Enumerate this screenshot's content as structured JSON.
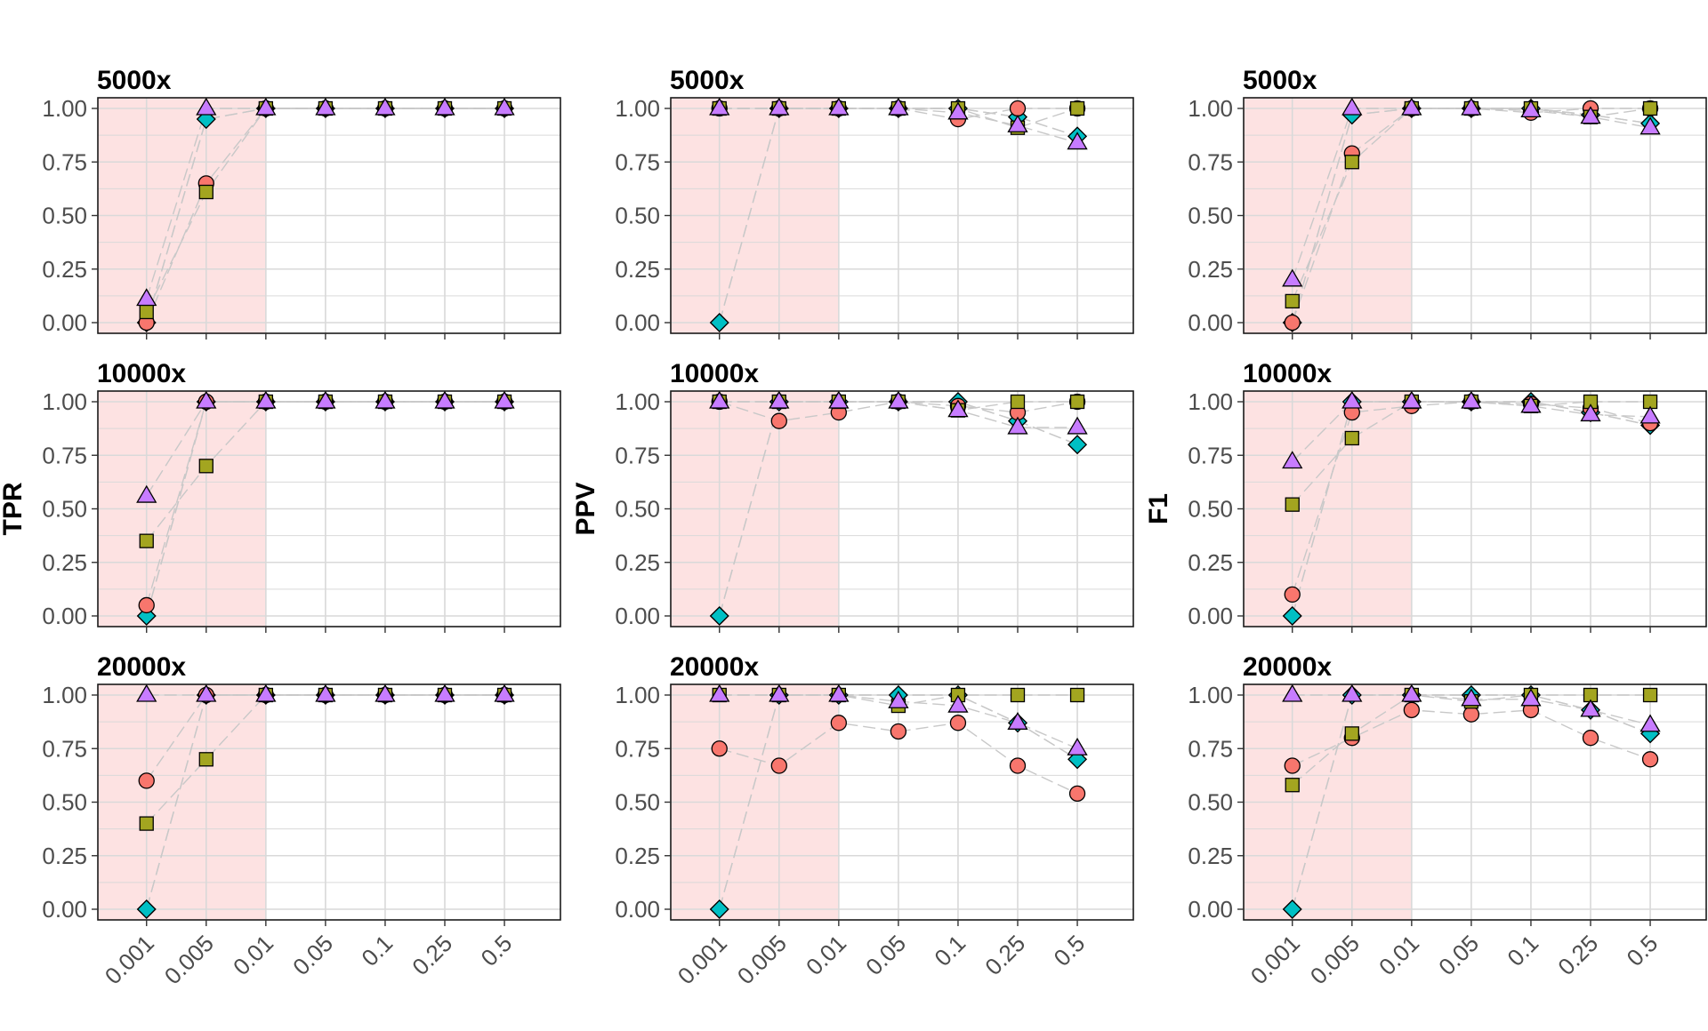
{
  "colors": {
    "highlight": "#fde2e2",
    "grid": "#d9d9d9",
    "connector": "#c8c8c8",
    "series": [
      "#f8766d",
      "#a3a520",
      "#c77cff",
      "#00bfc4",
      "#3fb58f"
    ]
  },
  "chart_data": [
    {
      "type": "scatter",
      "ylabel": "TPR",
      "x": [
        "0.001",
        "0.005",
        "0.01",
        "0.05",
        "0.1",
        "0.25",
        "0.5"
      ],
      "ylim": [
        0,
        1
      ],
      "yticks": [
        "0.00",
        "0.25",
        "0.50",
        "0.75",
        "1.00"
      ],
      "shaded_region": [
        "0.001",
        "0.01"
      ],
      "panels": [
        {
          "title": "5000x",
          "series": [
            {
              "shape": "circle",
              "values": [
                0.0,
                0.65,
                1,
                1,
                1,
                1,
                1
              ]
            },
            {
              "shape": "square",
              "values": [
                0.05,
                0.61,
                1,
                1,
                1,
                1,
                1
              ]
            },
            {
              "shape": "triangle",
              "values": [
                0.11,
                1.0,
                1,
                1,
                1,
                1,
                1
              ]
            },
            {
              "shape": "diamond",
              "values": [
                0.0,
                0.95,
                1,
                1,
                1,
                1,
                1
              ]
            },
            {
              "shape": "diamond2",
              "values": [
                0.0,
                0.95,
                1,
                1,
                1,
                1,
                1
              ]
            }
          ]
        },
        {
          "title": "10000x",
          "series": [
            {
              "shape": "circle",
              "values": [
                0.05,
                1.0,
                1,
                1,
                1,
                1,
                1
              ]
            },
            {
              "shape": "square",
              "values": [
                0.35,
                0.7,
                1,
                1,
                1,
                1,
                1
              ]
            },
            {
              "shape": "triangle",
              "values": [
                0.56,
                1.0,
                1,
                1,
                1,
                1,
                1
              ]
            },
            {
              "shape": "diamond",
              "values": [
                0.0,
                1.0,
                1,
                1,
                1,
                1,
                1
              ]
            },
            {
              "shape": "diamond2",
              "values": [
                0.0,
                1.0,
                1,
                1,
                1,
                1,
                1
              ]
            }
          ]
        },
        {
          "title": "20000x",
          "series": [
            {
              "shape": "circle",
              "values": [
                0.6,
                1.0,
                1,
                1,
                1,
                1,
                1
              ]
            },
            {
              "shape": "square",
              "values": [
                0.4,
                0.7,
                1,
                1,
                1,
                1,
                1
              ]
            },
            {
              "shape": "triangle",
              "values": [
                1.0,
                1.0,
                1,
                1,
                1,
                1,
                1
              ]
            },
            {
              "shape": "diamond",
              "values": [
                0.0,
                1.0,
                1,
                1,
                1,
                1,
                1
              ]
            },
            {
              "shape": "diamond2",
              "values": [
                0.0,
                1.0,
                1,
                1,
                1,
                1,
                1
              ]
            }
          ]
        }
      ]
    },
    {
      "type": "scatter",
      "ylabel": "PPV",
      "x": [
        "0.001",
        "0.005",
        "0.01",
        "0.05",
        "0.1",
        "0.25",
        "0.5"
      ],
      "ylim": [
        0,
        1
      ],
      "yticks": [
        "0.00",
        "0.25",
        "0.50",
        "0.75",
        "1.00"
      ],
      "shaded_region": [
        "0.001",
        "0.01"
      ],
      "panels": [
        {
          "title": "5000x",
          "series": [
            {
              "shape": "circle",
              "values": [
                1.0,
                1.0,
                1,
                1,
                0.95,
                1.0,
                1.0
              ]
            },
            {
              "shape": "square",
              "values": [
                1.0,
                1.0,
                1,
                1,
                1.0,
                0.91,
                1.0
              ]
            },
            {
              "shape": "triangle",
              "values": [
                1.0,
                1.0,
                1,
                1,
                0.98,
                0.92,
                0.84
              ]
            },
            {
              "shape": "diamond",
              "values": [
                0.0,
                1.0,
                1,
                1,
                1.0,
                0.96,
                0.87
              ]
            },
            {
              "shape": "diamond2",
              "values": [
                0.0,
                1.0,
                1,
                1,
                1.0,
                0.96,
                0.87
              ]
            }
          ]
        },
        {
          "title": "10000x",
          "series": [
            {
              "shape": "circle",
              "values": [
                1.0,
                0.91,
                0.95,
                1,
                0.98,
                0.95,
                1.0
              ]
            },
            {
              "shape": "square",
              "values": [
                1.0,
                1.0,
                1.0,
                1,
                0.96,
                1.0,
                1.0
              ]
            },
            {
              "shape": "triangle",
              "values": [
                1.0,
                1.0,
                1.0,
                1,
                0.96,
                0.88,
                0.88
              ]
            },
            {
              "shape": "diamond",
              "values": [
                0.0,
                1.0,
                1.0,
                1,
                1.0,
                0.91,
                0.8
              ]
            },
            {
              "shape": "diamond2",
              "values": [
                0.0,
                1.0,
                1.0,
                1,
                1.0,
                0.91,
                0.8
              ]
            }
          ]
        },
        {
          "title": "20000x",
          "series": [
            {
              "shape": "circle",
              "values": [
                0.75,
                0.67,
                0.87,
                0.83,
                0.87,
                0.67,
                0.54
              ]
            },
            {
              "shape": "square",
              "values": [
                1.0,
                1.0,
                1.0,
                0.95,
                1.0,
                1.0,
                1.0
              ]
            },
            {
              "shape": "triangle",
              "values": [
                1.0,
                1.0,
                1.0,
                0.97,
                0.95,
                0.87,
                0.75
              ]
            },
            {
              "shape": "diamond",
              "values": [
                0.0,
                1.0,
                1.0,
                1.0,
                1.0,
                0.87,
                0.7
              ]
            },
            {
              "shape": "diamond2",
              "values": [
                0.0,
                1.0,
                1.0,
                1.0,
                1.0,
                0.87,
                0.7
              ]
            }
          ]
        }
      ]
    },
    {
      "type": "scatter",
      "ylabel": "F1",
      "x": [
        "0.001",
        "0.005",
        "0.01",
        "0.05",
        "0.1",
        "0.25",
        "0.5"
      ],
      "ylim": [
        0,
        1
      ],
      "yticks": [
        "0.00",
        "0.25",
        "0.50",
        "0.75",
        "1.00"
      ],
      "shaded_region": [
        "0.001",
        "0.01"
      ],
      "panels": [
        {
          "title": "5000x",
          "series": [
            {
              "shape": "circle",
              "values": [
                0.0,
                0.79,
                1,
                1,
                0.98,
                1.0,
                1.0
              ]
            },
            {
              "shape": "square",
              "values": [
                0.1,
                0.75,
                1,
                1,
                1.0,
                0.96,
                1.0
              ]
            },
            {
              "shape": "triangle",
              "values": [
                0.2,
                1.0,
                1,
                1,
                0.99,
                0.96,
                0.91
              ]
            },
            {
              "shape": "diamond",
              "values": [
                0.0,
                0.97,
                1,
                1,
                1.0,
                0.97,
                0.93
              ]
            },
            {
              "shape": "diamond2",
              "values": [
                0.0,
                0.97,
                1,
                1,
                1.0,
                0.97,
                0.93
              ]
            }
          ]
        },
        {
          "title": "10000x",
          "series": [
            {
              "shape": "circle",
              "values": [
                0.1,
                0.95,
                0.98,
                1,
                0.99,
                0.97,
                0.9
              ]
            },
            {
              "shape": "square",
              "values": [
                0.52,
                0.83,
                1.0,
                1,
                0.98,
                1.0,
                1.0
              ]
            },
            {
              "shape": "triangle",
              "values": [
                0.72,
                1.0,
                1.0,
                1,
                0.98,
                0.94,
                0.93
              ]
            },
            {
              "shape": "diamond",
              "values": [
                0.0,
                1.0,
                1.0,
                1,
                1.0,
                0.95,
                0.89
              ]
            },
            {
              "shape": "diamond2",
              "values": [
                0.0,
                1.0,
                1.0,
                1,
                1.0,
                0.95,
                0.89
              ]
            }
          ]
        },
        {
          "title": "20000x",
          "series": [
            {
              "shape": "circle",
              "values": [
                0.67,
                0.8,
                0.93,
                0.91,
                0.93,
                0.8,
                0.7
              ]
            },
            {
              "shape": "square",
              "values": [
                0.58,
                0.82,
                1.0,
                0.97,
                1.0,
                1.0,
                1.0
              ]
            },
            {
              "shape": "triangle",
              "values": [
                1.0,
                1.0,
                1.0,
                0.98,
                0.98,
                0.93,
                0.86
              ]
            },
            {
              "shape": "diamond",
              "values": [
                0.0,
                1.0,
                1.0,
                1.0,
                1.0,
                0.93,
                0.82
              ]
            },
            {
              "shape": "diamond2",
              "values": [
                0.0,
                1.0,
                1.0,
                1.0,
                1.0,
                0.93,
                0.82
              ]
            }
          ]
        }
      ]
    }
  ]
}
